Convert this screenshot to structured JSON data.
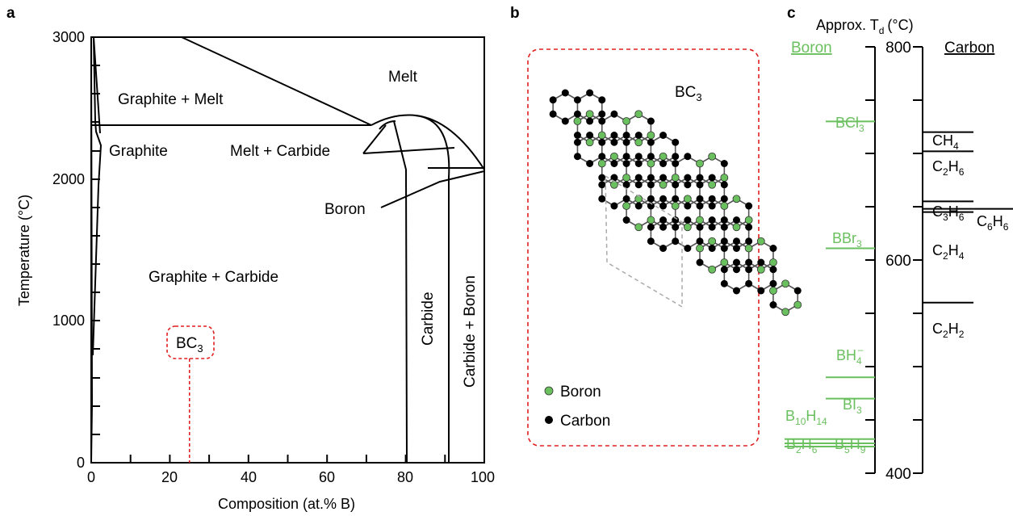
{
  "panels": {
    "a": "a",
    "b": "b",
    "c": "c"
  },
  "phase_diagram": {
    "xlabel": "Composition (at.% B)",
    "ylabel": "Temperature (°C)",
    "xticks": [
      "0",
      "20",
      "40",
      "60",
      "80",
      "100"
    ],
    "yticks": [
      "0",
      "1000",
      "2000",
      "3000"
    ],
    "regions": {
      "melt": "Melt",
      "graphite_melt": "Graphite + Melt",
      "graphite": "Graphite",
      "melt_carbide": "Melt + Carbide",
      "boron": "Boron",
      "graphite_carbide": "Graphite + Carbide",
      "carbide": "Carbide",
      "carbide_boron": "Carbide + Boron"
    },
    "bc3_label": "BC",
    "bc3_sub": "3",
    "bc3_composition": 25
  },
  "lattice": {
    "title": "BC",
    "title_sub": "3",
    "legend_boron": "Boron",
    "legend_carbon": "Carbon",
    "boron_color": "#6abf5e",
    "carbon_color": "#000000"
  },
  "decomposition": {
    "axis_title": "Approx. T",
    "axis_title_sub": "d",
    "axis_title_unit": "(°C)",
    "boron_header": "Boron",
    "carbon_header": "Carbon",
    "tick_800": "800",
    "tick_600": "600",
    "tick_400": "400",
    "boron_color": "#6abf5e",
    "boron_precursors": [
      {
        "id": "bcl3",
        "T": 730
      },
      {
        "id": "bbr3",
        "T": 611
      },
      {
        "id": "bh4",
        "T": 490
      },
      {
        "id": "bi3",
        "T": 470
      },
      {
        "id": "b10h14",
        "T": 432
      },
      {
        "id": "b2h6",
        "T": 428
      },
      {
        "id": "b5h9",
        "T": 425
      }
    ],
    "carbon_precursors": [
      {
        "id": "ch4",
        "T": 720
      },
      {
        "id": "c2h6",
        "T": 702
      },
      {
        "id": "c3h6",
        "T": 655
      },
      {
        "id": "c6h6",
        "T": 648
      },
      {
        "id": "c2h4",
        "T": 645
      },
      {
        "id": "c2h2",
        "T": 560
      }
    ],
    "labels": {
      "bcl3": [
        "BCl",
        "3"
      ],
      "bbr3": [
        "BBr",
        "3"
      ],
      "bh4": [
        "BH",
        "4",
        "–"
      ],
      "bi3": [
        "BI",
        "3"
      ],
      "b10h14": [
        "B",
        "10",
        "H",
        "14"
      ],
      "b2h6": [
        "B",
        "2",
        "H",
        "6"
      ],
      "b5h9": [
        "B",
        "5",
        "H",
        "9"
      ],
      "ch4": [
        "CH",
        "4"
      ],
      "c2h6": [
        "C",
        "2",
        "H",
        "6"
      ],
      "c3h6": [
        "C",
        "3",
        "H",
        "6"
      ],
      "c6h6": [
        "C",
        "6",
        "H",
        "6"
      ],
      "c2h4": [
        "C",
        "2",
        "H",
        "4"
      ],
      "c2h2": [
        "C",
        "2",
        "H",
        "2"
      ]
    }
  }
}
